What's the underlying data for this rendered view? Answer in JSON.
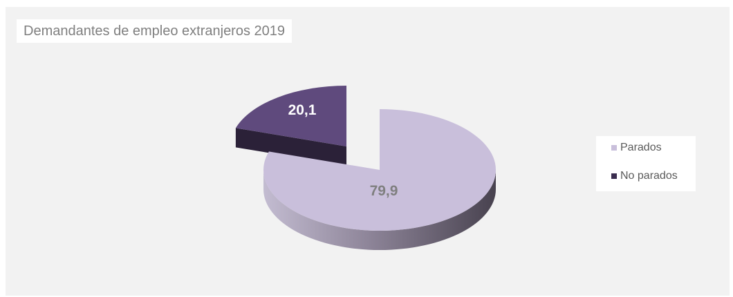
{
  "chart_data": {
    "type": "pie",
    "title": "Demandantes de empleo extranjeros 2019",
    "series": [
      {
        "name": "Parados",
        "value": 79.9,
        "label": "79,9",
        "color": "#c9bfdb",
        "label_color": "#7f7f7f"
      },
      {
        "name": "No parados",
        "value": 20.1,
        "label": "20,1",
        "color": "#5f4a7d",
        "label_color": "#ffffff"
      }
    ],
    "legend_position": "right",
    "exploded": "No parados",
    "style": "3d"
  }
}
